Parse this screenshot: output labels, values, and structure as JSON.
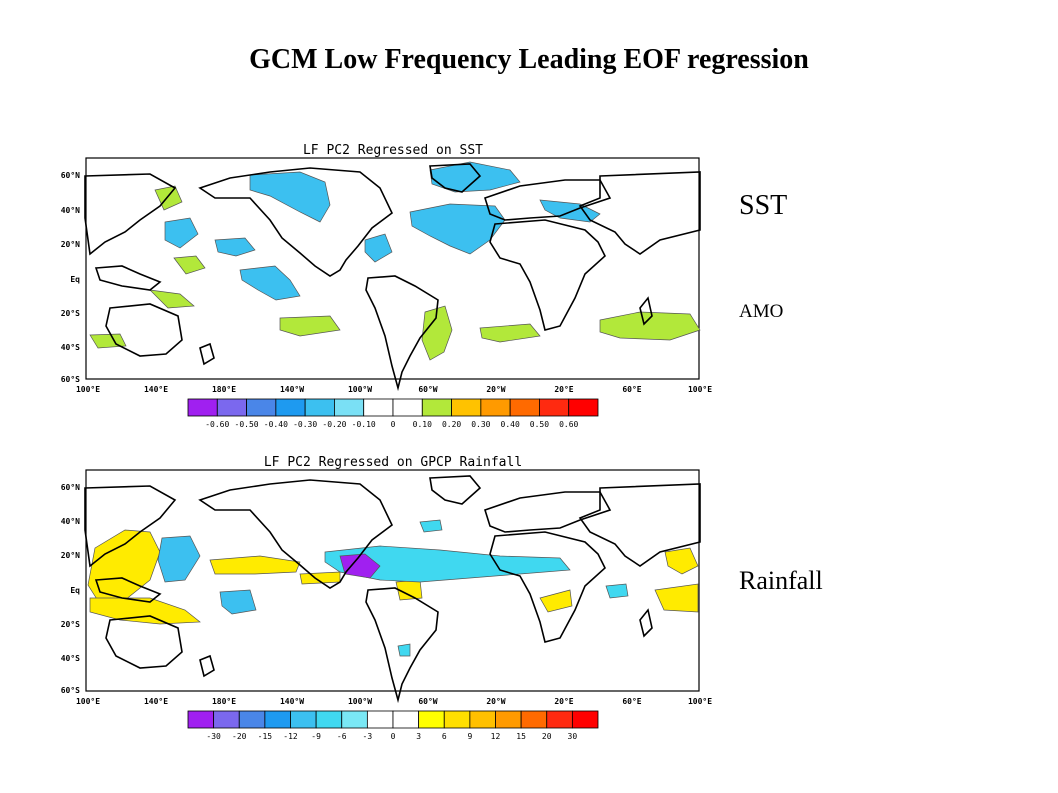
{
  "title": "GCM Low Frequency Leading EOF regression",
  "side_labels": {
    "sst": "SST",
    "amo": "AMO",
    "rainfall": "Rainfall"
  },
  "lat_labels": [
    "60°N",
    "40°N",
    "20°N",
    "Eq",
    "20°S",
    "40°S",
    "60°S"
  ],
  "lon_labels": [
    "100°E",
    "140°E",
    "180°E",
    "140°W",
    "100°W",
    "60°W",
    "20°W",
    "20°E",
    "60°E",
    "100°E"
  ],
  "maps": [
    {
      "title": "LF PC2 Regressed on SST",
      "colorbar": {
        "labels": [
          "-0.60",
          "-0.50",
          "-0.40",
          "-0.30",
          "-0.20",
          "-0.10",
          "0",
          "0.10",
          "0.20",
          "0.30",
          "0.40",
          "0.50",
          "0.60"
        ],
        "colors": [
          "#a020f0",
          "#7b68ee",
          "#4a86e8",
          "#1e9af0",
          "#3cc0f0",
          "#7ae0f5",
          "#ffffff",
          "#ffffff",
          "#b2e83a",
          "#ffc200",
          "#ff9a00",
          "#ff6a00",
          "#ff2a10",
          "#ff0000"
        ]
      }
    },
    {
      "title": "LF PC2 Regressed on GPCP Rainfall",
      "colorbar": {
        "labels": [
          "-30",
          "-20",
          "-15",
          "-12",
          "-9",
          "-6",
          "-3",
          "0",
          "3",
          "6",
          "9",
          "12",
          "15",
          "20",
          "30"
        ],
        "colors": [
          "#a020f0",
          "#7b68ee",
          "#4a86e8",
          "#1e9af0",
          "#3cc0f0",
          "#40d8f0",
          "#7ae8f5",
          "#ffffff",
          "#ffffff",
          "#ffff00",
          "#ffdf00",
          "#ffc000",
          "#ff9a00",
          "#ff6a00",
          "#ff2a10",
          "#ff0000"
        ]
      }
    }
  ],
  "colors": {
    "negative": "#3cc0f0",
    "negative_strong": "#1e9af0",
    "positive_sst": "#b2e83a",
    "positive_rain": "#ffeb00",
    "extreme_neg": "#a020f0"
  }
}
